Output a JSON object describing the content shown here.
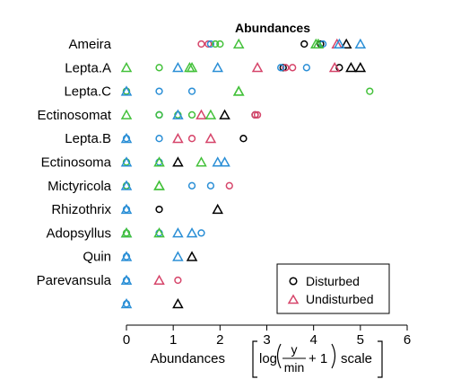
{
  "chart_data": {
    "type": "scatter",
    "title": "Abundances",
    "xlabel": {
      "prefix": "Abundances",
      "log": "log",
      "numerator": "y",
      "denominator": "min",
      "suffix": "+ 1",
      "scale": "scale"
    },
    "xlim": [
      0,
      6
    ],
    "xticks": [
      0,
      1,
      2,
      3,
      4,
      5,
      6
    ],
    "categories": [
      "Ameira",
      "Lepta.A",
      "Lepta.C",
      "Ectinosomat",
      "Lepta.B",
      "Ectinosoma",
      "Mictyricola",
      "Rhizothrix",
      "Adopsyllus",
      "Quin",
      "Parevansula",
      ""
    ],
    "legend": {
      "placement": "bottom-right",
      "entries": [
        {
          "label": "Disturbed",
          "marker": "circle"
        },
        {
          "label": "Undisturbed",
          "marker": "triangle"
        }
      ]
    },
    "colors": {
      "black": "#000000",
      "red": "#d6456a",
      "blue": "#2b8fd6",
      "green": "#44c13b"
    },
    "series": [
      {
        "marker": "circle",
        "color": "black",
        "points": [
          [
            "Ameira",
            3.8
          ],
          [
            "Ameira",
            4.15
          ],
          [
            "Lepta.A",
            3.35
          ],
          [
            "Lepta.A",
            4.55
          ],
          [
            "Ectinosomat",
            2.75
          ],
          [
            "Lepta.B",
            2.5
          ],
          [
            "Rhizothrix",
            0.7
          ]
        ]
      },
      {
        "marker": "circle",
        "color": "red",
        "points": [
          [
            "Ameira",
            1.6
          ],
          [
            "Ameira",
            1.75
          ],
          [
            "Lepta.A",
            3.4
          ],
          [
            "Lepta.A",
            3.55
          ],
          [
            "Lepta.C",
            0
          ],
          [
            "Ectinosomat",
            2.75
          ],
          [
            "Ectinosomat",
            2.8
          ],
          [
            "Lepta.B",
            1.4
          ],
          [
            "Mictyricola",
            2.2
          ],
          [
            "Parevansula",
            1.1
          ]
        ]
      },
      {
        "marker": "circle",
        "color": "blue",
        "points": [
          [
            "Ameira",
            1.8
          ],
          [
            "Ameira",
            4.2
          ],
          [
            "Lepta.A",
            3.3
          ],
          [
            "Lepta.A",
            3.85
          ],
          [
            "Lepta.C",
            0
          ],
          [
            "Lepta.C",
            0.7
          ],
          [
            "Lepta.C",
            1.4
          ],
          [
            "Ectinosomat",
            0.7
          ],
          [
            "Ectinosomat",
            0.7
          ],
          [
            "Lepta.B",
            0
          ],
          [
            "Lepta.B",
            0.7
          ],
          [
            "Ectinosoma",
            0
          ],
          [
            "Ectinosoma",
            0.7
          ],
          [
            "Mictyricola",
            0
          ],
          [
            "Mictyricola",
            1.4
          ],
          [
            "Mictyricola",
            1.8
          ],
          [
            "Rhizothrix",
            0
          ],
          [
            "Adopsyllus",
            0.7
          ],
          [
            "Adopsyllus",
            1.6
          ],
          [
            "Quin",
            0
          ],
          [
            "Parevansula",
            0
          ],
          [
            "",
            0
          ]
        ]
      },
      {
        "marker": "circle",
        "color": "green",
        "points": [
          [
            "Ameira",
            1.9
          ],
          [
            "Ameira",
            2.0
          ],
          [
            "Lepta.A",
            0.7
          ],
          [
            "Lepta.C",
            0
          ],
          [
            "Lepta.C",
            5.2
          ],
          [
            "Ectinosomat",
            0.7
          ],
          [
            "Ectinosomat",
            1.1
          ],
          [
            "Ectinosomat",
            1.4
          ],
          [
            "Ectinosoma",
            0
          ],
          [
            "Mictyricola",
            0
          ],
          [
            "Adopsyllus",
            0
          ]
        ]
      },
      {
        "marker": "triangle",
        "color": "black",
        "points": [
          [
            "Ameira",
            4.7
          ],
          [
            "Lepta.A",
            4.8
          ],
          [
            "Lepta.A",
            5.0
          ],
          [
            "Ectinosomat",
            2.1
          ],
          [
            "Ectinosoma",
            1.1
          ],
          [
            "Rhizothrix",
            1.95
          ],
          [
            "Quin",
            1.4
          ],
          [
            "",
            1.1
          ]
        ]
      },
      {
        "marker": "triangle",
        "color": "red",
        "points": [
          [
            "Ameira",
            4.5
          ],
          [
            "Lepta.A",
            2.8
          ],
          [
            "Lepta.A",
            4.45
          ],
          [
            "Ectinosomat",
            1.6
          ],
          [
            "Lepta.B",
            1.1
          ],
          [
            "Lepta.B",
            1.8
          ],
          [
            "Parevansula",
            0.7
          ]
        ]
      },
      {
        "marker": "triangle",
        "color": "blue",
        "points": [
          [
            "Ameira",
            4.55
          ],
          [
            "Ameira",
            5.0
          ],
          [
            "Lepta.A",
            1.1
          ],
          [
            "Lepta.A",
            1.95
          ],
          [
            "Lepta.C",
            0
          ],
          [
            "Ectinosomat",
            1.1
          ],
          [
            "Lepta.B",
            0
          ],
          [
            "Ectinosoma",
            0
          ],
          [
            "Ectinosoma",
            1.95
          ],
          [
            "Ectinosoma",
            2.1
          ],
          [
            "Mictyricola",
            0
          ],
          [
            "Rhizothrix",
            0
          ],
          [
            "Adopsyllus",
            0
          ],
          [
            "Adopsyllus",
            1.1
          ],
          [
            "Adopsyllus",
            1.4
          ],
          [
            "Quin",
            0
          ],
          [
            "Quin",
            1.1
          ],
          [
            "Parevansula",
            0
          ],
          [
            "",
            0
          ]
        ]
      },
      {
        "marker": "triangle",
        "color": "green",
        "points": [
          [
            "Ameira",
            2.4
          ],
          [
            "Ameira",
            4.05
          ],
          [
            "Ameira",
            4.1
          ],
          [
            "Lepta.A",
            0
          ],
          [
            "Lepta.A",
            1.35
          ],
          [
            "Lepta.A",
            1.4
          ],
          [
            "Lepta.C",
            2.4
          ],
          [
            "Lepta.C",
            2.4
          ],
          [
            "Ectinosomat",
            0
          ],
          [
            "Ectinosomat",
            1.8
          ],
          [
            "Ectinosoma",
            0.7
          ],
          [
            "Ectinosoma",
            1.6
          ],
          [
            "Mictyricola",
            0.7
          ],
          [
            "Mictyricola",
            0.7
          ],
          [
            "Adopsyllus",
            0
          ],
          [
            "Adopsyllus",
            0.7
          ]
        ]
      }
    ]
  }
}
